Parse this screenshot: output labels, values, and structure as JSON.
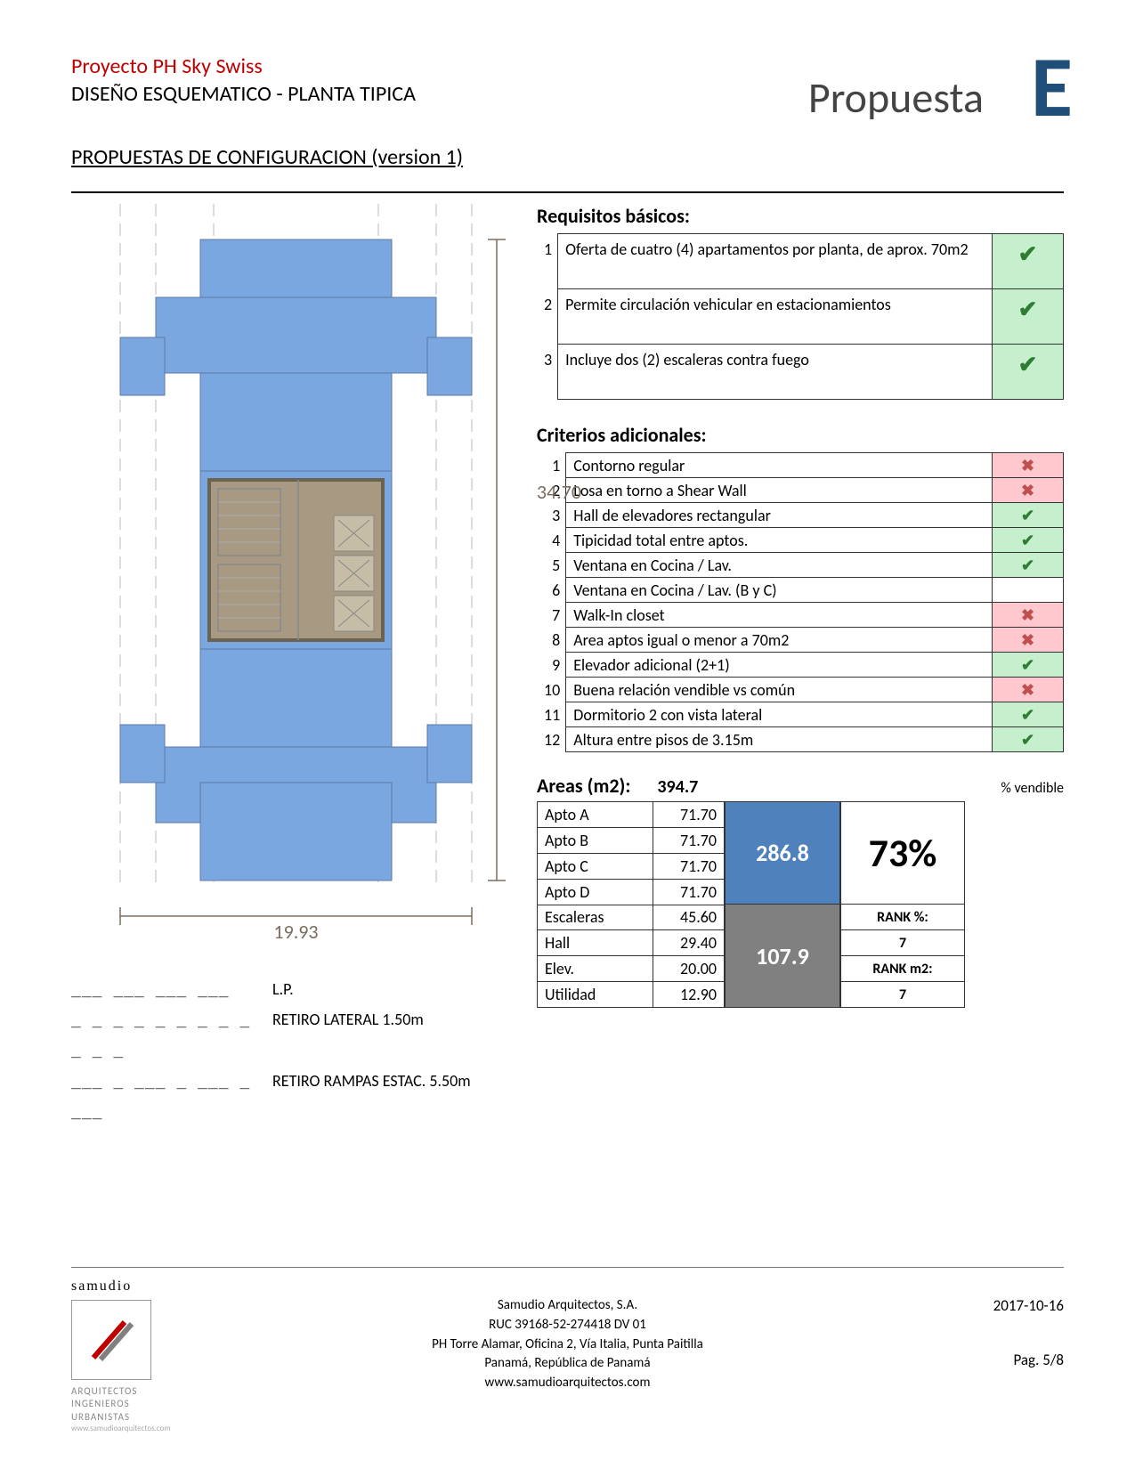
{
  "header": {
    "project_title": "Proyecto PH Sky Swiss",
    "subtitle": "DISEÑO ESQUEMATICO - PLANTA TIPICA",
    "config_title": "PROPUESTAS DE CONFIGURACION (version 1)",
    "proposal_word": "Propuesta",
    "proposal_letter": "E"
  },
  "floorplan": {
    "dim_width": "19.93",
    "dim_height": "34.70",
    "fill_blue": "#7ba7e0",
    "fill_core": "#a89a82",
    "stroke": "#5c7aa8",
    "legend": [
      {
        "sym": "___ ___ ___ ___",
        "label": "L.P."
      },
      {
        "sym": "_ _ _ _ _ _ _ _ _ _ _ _",
        "label": "RETIRO LATERAL 1.50m"
      },
      {
        "sym": "___ _ ___ _ ___ _ ___",
        "label": "RETIRO RAMPAS ESTAC. 5.50m"
      }
    ]
  },
  "requisitos": {
    "title": "Requisitos básicos:",
    "rows": [
      {
        "n": "1",
        "text": "Oferta de cuatro (4) apartamentos por planta, de aprox. 70m2",
        "status": "ok"
      },
      {
        "n": "2",
        "text": "Permite circulación vehicular en estacionamientos",
        "status": "ok"
      },
      {
        "n": "3",
        "text": "Incluye dos (2) escaleras contra fuego",
        "status": "ok"
      }
    ]
  },
  "criterios": {
    "title": "Criterios adicionales:",
    "rows": [
      {
        "n": "1",
        "text": "Contorno regular",
        "status": "no"
      },
      {
        "n": "2",
        "text": "Losa en torno a Shear Wall",
        "status": "no"
      },
      {
        "n": "3",
        "text": "Hall de elevadores rectangular",
        "status": "ok"
      },
      {
        "n": "4",
        "text": "Tipicidad total entre aptos.",
        "status": "ok"
      },
      {
        "n": "5",
        "text": "Ventana en Cocina / Lav.",
        "status": "ok"
      },
      {
        "n": "6",
        "text": "Ventana en Cocina / Lav. (B y C)",
        "status": "blank"
      },
      {
        "n": "7",
        "text": "Walk-In closet",
        "status": "no"
      },
      {
        "n": "8",
        "text": "Area aptos igual o menor a 70m2",
        "status": "no"
      },
      {
        "n": "9",
        "text": "Elevador adicional (2+1)",
        "status": "ok"
      },
      {
        "n": "10",
        "text": "Buena relación vendible vs común",
        "status": "no"
      },
      {
        "n": "11",
        "text": "Dormitorio 2 con vista lateral",
        "status": "ok"
      },
      {
        "n": "12",
        "text": "Altura entre pisos de 3.15m",
        "status": "ok"
      }
    ]
  },
  "areas": {
    "title": "Areas (m2):",
    "total": "394.7",
    "pct_label": "% vendible",
    "rows_sellable": [
      {
        "name": "Apto A",
        "val": "71.70"
      },
      {
        "name": "Apto B",
        "val": "71.70"
      },
      {
        "name": "Apto C",
        "val": "71.70"
      },
      {
        "name": "Apto D",
        "val": "71.70"
      }
    ],
    "rows_common": [
      {
        "name": "Escaleras",
        "val": "45.60"
      },
      {
        "name": "Hall",
        "val": "29.40"
      },
      {
        "name": "Elev.",
        "val": "20.00"
      },
      {
        "name": "Utilidad",
        "val": "12.90"
      }
    ],
    "sum_sellable": "286.8",
    "sum_common": "107.9",
    "pct_value": "73%",
    "rank_pct_label": "RANK %:",
    "rank_pct_value": "7",
    "rank_m2_label": "RANK m2:",
    "rank_m2_value": "7",
    "colors": {
      "blue": "#4f81bd",
      "gray": "#808080"
    }
  },
  "footer": {
    "logo_name": "samudio",
    "logo_sub1": "ARQUITECTOS",
    "logo_sub2": "INGENIEROS",
    "logo_sub3": "URBANISTAS",
    "logo_url": "www.samudioarquitectos.com",
    "line1": "Samudio Arquitectos, S.A.",
    "line2": "RUC 39168-52-274418 DV 01",
    "line3": "PH Torre Alamar, Oficina 2, Vía Italia, Punta Paitilla",
    "line4": "Panamá, República de Panamá",
    "line5": "www.samudioarquitectos.com",
    "date": "2017-10-16",
    "page": "Pag. 5/8"
  },
  "colors": {
    "accent_red": "#c00000",
    "accent_blue": "#1f4e79",
    "ok_bg": "#c6efce",
    "ok_fg": "#2e7d32",
    "no_bg": "#ffc7ce",
    "no_fg": "#c0504d"
  }
}
